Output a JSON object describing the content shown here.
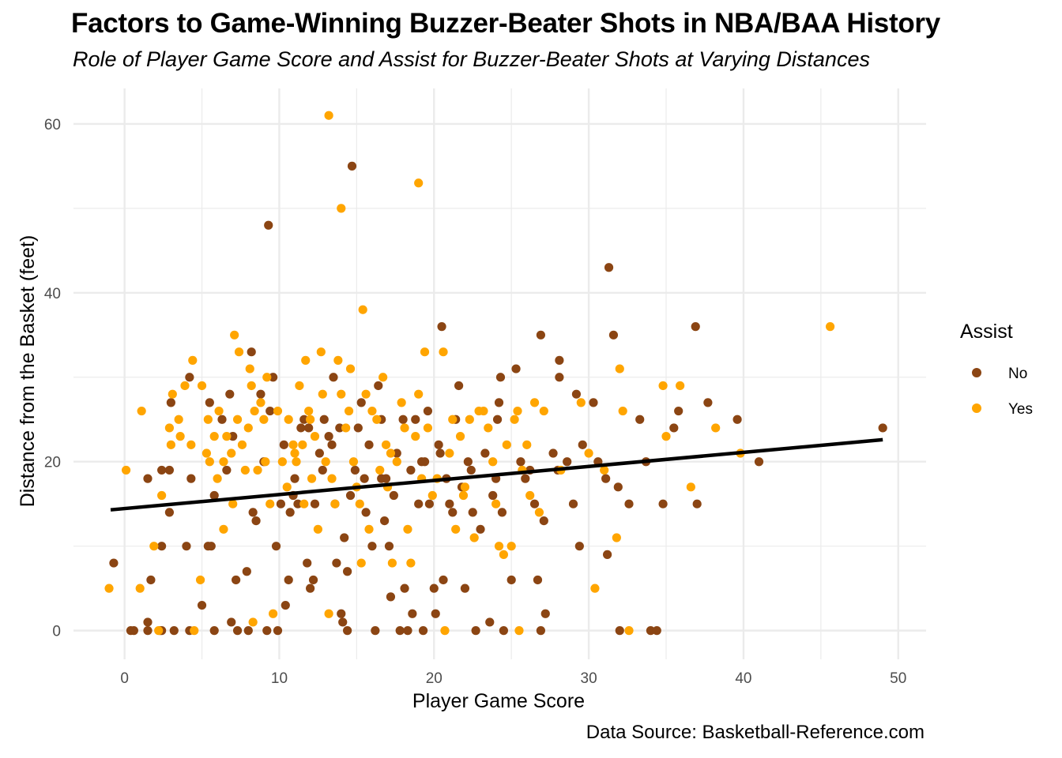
{
  "chart_data": {
    "type": "scatter",
    "title": "Factors to Game-Winning Buzzer-Beater Shots in NBA/BAA History",
    "subtitle": "Role of Player Game Score and Assist for Buzzer-Beater Shots at Varying Distances",
    "caption": "Data Source: Basketball-Reference.com",
    "xlabel": "Player Game Score",
    "ylabel": "Distance from the Basket (feet)",
    "xlim": [
      -3.3,
      51.8
    ],
    "ylim": [
      -3.4,
      64.2
    ],
    "xticks": [
      0,
      10,
      20,
      30,
      40,
      50
    ],
    "yticks": [
      0,
      20,
      40,
      60
    ],
    "grid": true,
    "legend": {
      "title": "Assist",
      "position": "right",
      "entries": [
        "No",
        "Yes"
      ]
    },
    "colors": {
      "No": "#8B4513",
      "Yes": "#FFA500",
      "trend": "#000000"
    },
    "trend_line": {
      "x": [
        -0.9,
        49.0
      ],
      "y": [
        14.3,
        22.6
      ]
    },
    "series": [
      {
        "name": "No",
        "points": [
          [
            -0.7,
            8
          ],
          [
            0.4,
            0
          ],
          [
            0.6,
            0
          ],
          [
            1.5,
            18
          ],
          [
            1.5,
            1
          ],
          [
            1.5,
            0
          ],
          [
            1.7,
            6
          ],
          [
            2.4,
            19
          ],
          [
            2.4,
            10
          ],
          [
            2.3,
            0
          ],
          [
            2.4,
            0
          ],
          [
            2.9,
            19
          ],
          [
            2.9,
            14
          ],
          [
            3.0,
            27
          ],
          [
            3.2,
            0
          ],
          [
            4.0,
            10
          ],
          [
            4.2,
            30
          ],
          [
            4.3,
            18
          ],
          [
            4.2,
            0
          ],
          [
            5.0,
            3
          ],
          [
            5.4,
            10
          ],
          [
            5.6,
            10
          ],
          [
            5.5,
            27
          ],
          [
            5.8,
            16
          ],
          [
            5.8,
            0
          ],
          [
            6.3,
            25
          ],
          [
            6.6,
            19
          ],
          [
            6.8,
            28
          ],
          [
            7.0,
            23
          ],
          [
            6.9,
            1
          ],
          [
            7.2,
            6
          ],
          [
            7.3,
            0
          ],
          [
            8.0,
            0
          ],
          [
            7.9,
            7
          ],
          [
            8.2,
            33
          ],
          [
            8.3,
            14
          ],
          [
            8.5,
            13
          ],
          [
            8.8,
            28
          ],
          [
            9.0,
            20
          ],
          [
            9.2,
            0
          ],
          [
            9.3,
            48
          ],
          [
            9.4,
            26
          ],
          [
            9.6,
            30
          ],
          [
            9.8,
            10
          ],
          [
            9.9,
            0
          ],
          [
            10.1,
            15
          ],
          [
            10.3,
            22
          ],
          [
            10.4,
            3
          ],
          [
            10.6,
            6
          ],
          [
            10.7,
            14
          ],
          [
            10.9,
            16
          ],
          [
            11.0,
            18
          ],
          [
            11.2,
            15
          ],
          [
            11.4,
            24
          ],
          [
            11.6,
            25
          ],
          [
            11.9,
            24
          ],
          [
            11.8,
            8
          ],
          [
            12.0,
            5
          ],
          [
            12.2,
            6
          ],
          [
            12.3,
            15
          ],
          [
            12.6,
            21
          ],
          [
            12.8,
            19
          ],
          [
            12.9,
            25
          ],
          [
            13.2,
            23
          ],
          [
            13.4,
            22
          ],
          [
            13.5,
            30
          ],
          [
            13.6,
            15
          ],
          [
            13.7,
            8
          ],
          [
            13.9,
            24
          ],
          [
            14.0,
            2
          ],
          [
            14.1,
            1
          ],
          [
            14.2,
            11
          ],
          [
            14.4,
            7
          ],
          [
            14.4,
            0
          ],
          [
            14.6,
            16
          ],
          [
            14.7,
            55
          ],
          [
            14.9,
            19
          ],
          [
            15.1,
            24
          ],
          [
            15.3,
            27
          ],
          [
            15.5,
            18
          ],
          [
            15.6,
            14
          ],
          [
            15.8,
            22
          ],
          [
            16.0,
            10
          ],
          [
            16.2,
            0
          ],
          [
            16.4,
            29
          ],
          [
            16.6,
            25
          ],
          [
            16.8,
            13
          ],
          [
            16.9,
            18
          ],
          [
            17.1,
            10
          ],
          [
            17.2,
            4
          ],
          [
            17.4,
            16
          ],
          [
            17.6,
            21
          ],
          [
            17.8,
            0
          ],
          [
            18.0,
            25
          ],
          [
            18.1,
            5
          ],
          [
            18.3,
            0
          ],
          [
            18.5,
            19
          ],
          [
            18.6,
            2
          ],
          [
            18.8,
            25
          ],
          [
            19.0,
            15
          ],
          [
            19.2,
            20
          ],
          [
            19.3,
            0
          ],
          [
            19.6,
            26
          ],
          [
            19.7,
            15
          ],
          [
            20.0,
            5
          ],
          [
            20.1,
            2
          ],
          [
            20.3,
            22
          ],
          [
            20.4,
            21
          ],
          [
            20.5,
            36
          ],
          [
            20.6,
            6
          ],
          [
            20.8,
            18
          ],
          [
            21.0,
            15
          ],
          [
            21.2,
            14
          ],
          [
            21.4,
            25
          ],
          [
            21.6,
            29
          ],
          [
            21.8,
            17
          ],
          [
            22.0,
            5
          ],
          [
            22.2,
            20
          ],
          [
            22.4,
            19
          ],
          [
            22.5,
            14
          ],
          [
            22.7,
            0
          ],
          [
            23.0,
            12
          ],
          [
            23.3,
            21
          ],
          [
            23.6,
            1
          ],
          [
            23.8,
            16
          ],
          [
            24.0,
            18
          ],
          [
            24.1,
            25
          ],
          [
            24.2,
            27
          ],
          [
            24.3,
            30
          ],
          [
            24.4,
            14
          ],
          [
            24.5,
            0
          ],
          [
            25.0,
            6
          ],
          [
            25.3,
            31
          ],
          [
            25.6,
            20
          ],
          [
            25.9,
            18
          ],
          [
            26.2,
            19
          ],
          [
            26.5,
            15
          ],
          [
            26.7,
            6
          ],
          [
            26.9,
            35
          ],
          [
            26.9,
            0
          ],
          [
            27.1,
            13
          ],
          [
            27.2,
            2
          ],
          [
            27.7,
            21
          ],
          [
            28.0,
            19
          ],
          [
            28.1,
            32
          ],
          [
            28.1,
            30
          ],
          [
            28.6,
            20
          ],
          [
            29.0,
            15
          ],
          [
            29.2,
            28
          ],
          [
            29.4,
            10
          ],
          [
            29.6,
            22
          ],
          [
            30.3,
            27
          ],
          [
            30.6,
            20
          ],
          [
            31.1,
            18
          ],
          [
            31.2,
            9
          ],
          [
            31.3,
            43
          ],
          [
            31.6,
            35
          ],
          [
            31.9,
            17
          ],
          [
            32.0,
            0
          ],
          [
            32.6,
            15
          ],
          [
            33.3,
            25
          ],
          [
            33.7,
            20
          ],
          [
            34.0,
            0
          ],
          [
            34.4,
            0
          ],
          [
            34.8,
            15
          ],
          [
            35.5,
            24
          ],
          [
            35.8,
            26
          ],
          [
            36.9,
            36
          ],
          [
            37.0,
            15
          ],
          [
            37.7,
            27
          ],
          [
            39.6,
            25
          ],
          [
            41.0,
            20
          ],
          [
            49.0,
            24
          ],
          [
            16.6,
            18
          ],
          [
            19.4,
            20
          ]
        ]
      },
      {
        "name": "Yes",
        "points": [
          [
            -1.0,
            5
          ],
          [
            0.1,
            19
          ],
          [
            1.0,
            5
          ],
          [
            1.1,
            26
          ],
          [
            1.9,
            10
          ],
          [
            2.2,
            0
          ],
          [
            2.4,
            16
          ],
          [
            2.9,
            24
          ],
          [
            3.0,
            22
          ],
          [
            3.1,
            28
          ],
          [
            3.5,
            25
          ],
          [
            3.6,
            23
          ],
          [
            3.9,
            29
          ],
          [
            4.3,
            22
          ],
          [
            4.4,
            32
          ],
          [
            4.5,
            0
          ],
          [
            4.9,
            6
          ],
          [
            5.0,
            29
          ],
          [
            5.3,
            21
          ],
          [
            5.4,
            25
          ],
          [
            5.5,
            20
          ],
          [
            5.8,
            23
          ],
          [
            6.0,
            18
          ],
          [
            6.1,
            26
          ],
          [
            6.4,
            20
          ],
          [
            6.4,
            12
          ],
          [
            6.6,
            23
          ],
          [
            6.9,
            21
          ],
          [
            7.0,
            15
          ],
          [
            7.1,
            35
          ],
          [
            7.3,
            25
          ],
          [
            7.4,
            33
          ],
          [
            7.6,
            22
          ],
          [
            7.8,
            19
          ],
          [
            8.0,
            24
          ],
          [
            8.1,
            31
          ],
          [
            8.2,
            29
          ],
          [
            8.3,
            1
          ],
          [
            8.4,
            26
          ],
          [
            8.6,
            19
          ],
          [
            8.8,
            27
          ],
          [
            9.0,
            25
          ],
          [
            9.1,
            20
          ],
          [
            9.2,
            30
          ],
          [
            9.4,
            15
          ],
          [
            9.6,
            2
          ],
          [
            9.9,
            26
          ],
          [
            10.2,
            20
          ],
          [
            10.5,
            17
          ],
          [
            10.9,
            22
          ],
          [
            11.0,
            21
          ],
          [
            11.1,
            20
          ],
          [
            11.3,
            29
          ],
          [
            11.5,
            22
          ],
          [
            11.6,
            15
          ],
          [
            11.7,
            32
          ],
          [
            11.9,
            26
          ],
          [
            12.1,
            18
          ],
          [
            12.3,
            23
          ],
          [
            12.5,
            12
          ],
          [
            12.7,
            33
          ],
          [
            12.8,
            28
          ],
          [
            13.0,
            20
          ],
          [
            13.2,
            61
          ],
          [
            13.2,
            2
          ],
          [
            13.4,
            18
          ],
          [
            13.6,
            15
          ],
          [
            13.8,
            32
          ],
          [
            14.0,
            28
          ],
          [
            14.0,
            50
          ],
          [
            14.3,
            24
          ],
          [
            14.5,
            26
          ],
          [
            14.6,
            31
          ],
          [
            14.8,
            20
          ],
          [
            15.0,
            17
          ],
          [
            15.2,
            15
          ],
          [
            15.3,
            8
          ],
          [
            15.4,
            38
          ],
          [
            15.6,
            28
          ],
          [
            15.8,
            12
          ],
          [
            16.0,
            26
          ],
          [
            16.3,
            25
          ],
          [
            16.5,
            19
          ],
          [
            16.7,
            30
          ],
          [
            16.9,
            22
          ],
          [
            17.0,
            17
          ],
          [
            17.3,
            8
          ],
          [
            17.6,
            20
          ],
          [
            17.9,
            27
          ],
          [
            18.1,
            24
          ],
          [
            18.3,
            12
          ],
          [
            18.5,
            8
          ],
          [
            18.8,
            23
          ],
          [
            19.0,
            53
          ],
          [
            19.0,
            28
          ],
          [
            19.2,
            18
          ],
          [
            19.4,
            33
          ],
          [
            19.6,
            24
          ],
          [
            19.9,
            16
          ],
          [
            20.2,
            18
          ],
          [
            20.6,
            33
          ],
          [
            20.7,
            0
          ],
          [
            21.0,
            21
          ],
          [
            21.2,
            25
          ],
          [
            21.4,
            12
          ],
          [
            21.7,
            23
          ],
          [
            22.0,
            17
          ],
          [
            22.3,
            25
          ],
          [
            22.6,
            11
          ],
          [
            22.9,
            26
          ],
          [
            23.2,
            26
          ],
          [
            23.5,
            24
          ],
          [
            23.8,
            20
          ],
          [
            24.0,
            15
          ],
          [
            24.2,
            10
          ],
          [
            24.5,
            9
          ],
          [
            24.7,
            22
          ],
          [
            25.0,
            10
          ],
          [
            25.2,
            25
          ],
          [
            25.4,
            26
          ],
          [
            25.5,
            0
          ],
          [
            25.7,
            19
          ],
          [
            26.0,
            22
          ],
          [
            26.2,
            16
          ],
          [
            26.5,
            27
          ],
          [
            26.8,
            14
          ],
          [
            27.1,
            26
          ],
          [
            28.2,
            19
          ],
          [
            29.5,
            27
          ],
          [
            30.0,
            21
          ],
          [
            30.4,
            5
          ],
          [
            31.0,
            19
          ],
          [
            31.8,
            11
          ],
          [
            32.0,
            31
          ],
          [
            32.2,
            26
          ],
          [
            32.6,
            0
          ],
          [
            34.8,
            29
          ],
          [
            35.0,
            23
          ],
          [
            35.9,
            29
          ],
          [
            36.6,
            17
          ],
          [
            38.2,
            24
          ],
          [
            39.8,
            21
          ],
          [
            45.6,
            36
          ],
          [
            12.0,
            25
          ],
          [
            17.2,
            21
          ],
          [
            21.9,
            16
          ],
          [
            10.6,
            25
          ]
        ]
      }
    ]
  }
}
